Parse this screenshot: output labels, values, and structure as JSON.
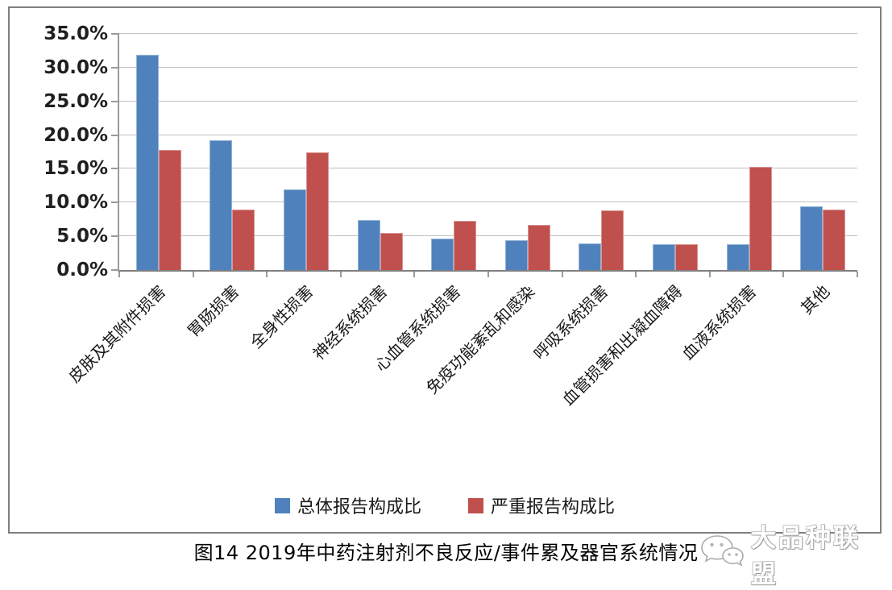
{
  "caption": "图14 2019年中药注射剂不良反应/事件累及器官系统情况",
  "watermark": {
    "label": "大品种联盟",
    "icon": "wechat-icon"
  },
  "colors": {
    "frame_border": "#7f7f7f",
    "axis": "#9a9a9a",
    "gridline": "#bfbfbf",
    "series_blue": "#4F81BD",
    "series_red": "#C0504D"
  },
  "chart_data": {
    "type": "bar",
    "title": "",
    "xlabel": "",
    "ylabel": "",
    "grid": true,
    "legend_position": "bottom",
    "ylim": [
      0,
      35
    ],
    "ytick_step": 5,
    "ytick_labels": [
      "0.0%",
      "5.0%",
      "10.0%",
      "15.0%",
      "20.0%",
      "25.0%",
      "30.0%",
      "35.0%"
    ],
    "categories": [
      "皮肤及其附件损害",
      "胃肠损害",
      "全身性损害",
      "神经系统损害",
      "心血管系统损害",
      "免疫功能紊乱和感染",
      "呼吸系统损害",
      "血管损害和出凝血障碍",
      "血液系统损害",
      "其他"
    ],
    "series": [
      {
        "name": "总体报告构成比",
        "color": "#4F81BD",
        "border_color": "#95B3D7",
        "values": [
          31.9,
          19.2,
          12.0,
          7.4,
          4.7,
          4.4,
          3.9,
          3.8,
          3.8,
          9.4
        ]
      },
      {
        "name": "严重报告构成比",
        "color": "#C0504D",
        "border_color": "#D99694",
        "values": [
          17.8,
          8.9,
          17.5,
          5.5,
          7.3,
          6.7,
          8.8,
          3.8,
          15.3,
          8.9
        ]
      }
    ]
  }
}
